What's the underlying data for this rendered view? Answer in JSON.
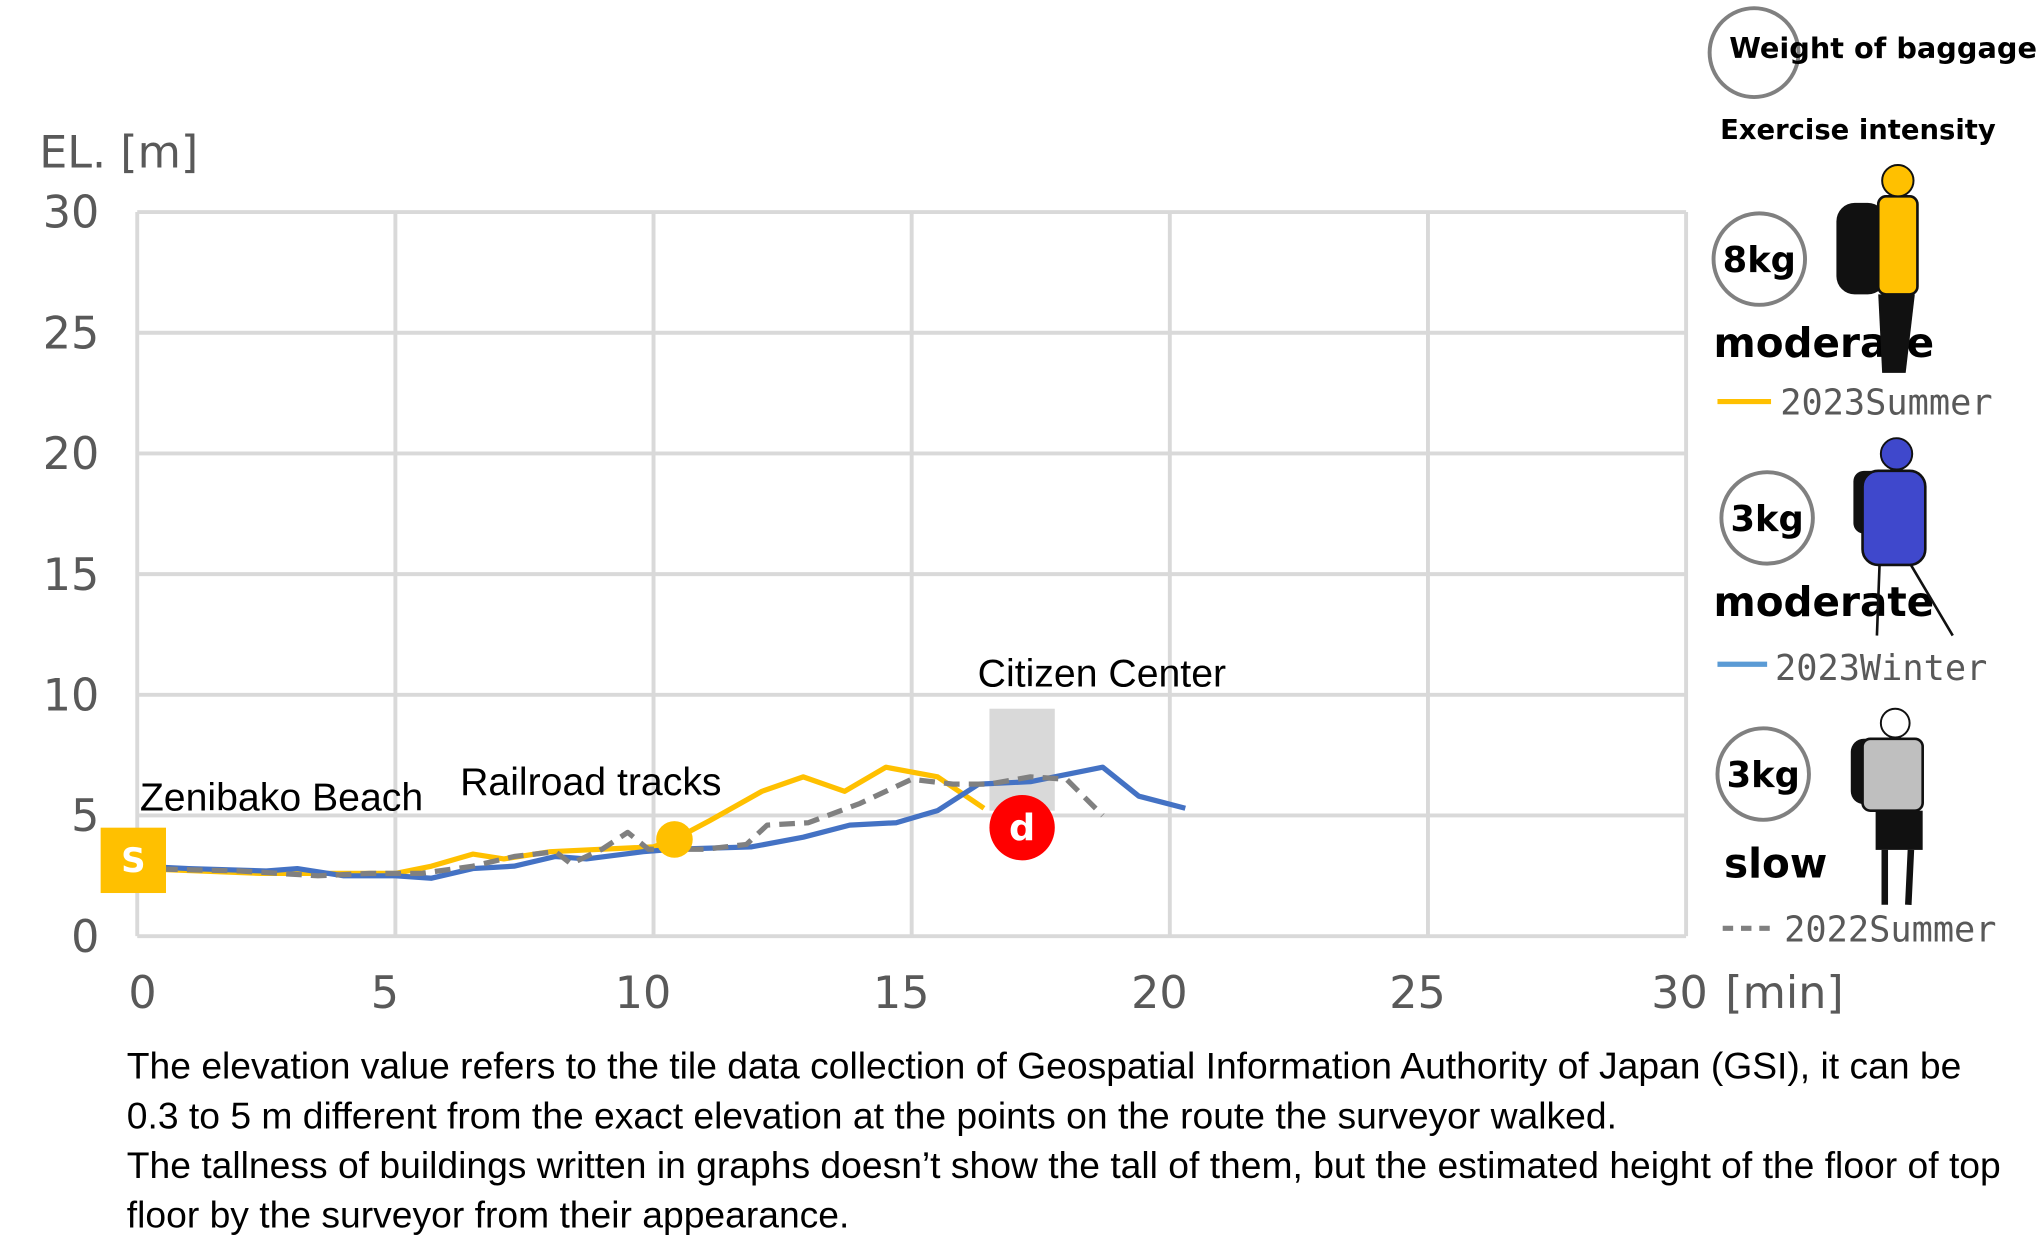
{
  "chart_data": {
    "type": "line",
    "ylabel": "EL. [m]",
    "xlabel": "[min]",
    "xlim": [
      0,
      30
    ],
    "ylim": [
      0,
      30
    ],
    "x_ticks": [
      "0",
      "5",
      "10",
      "15",
      "20",
      "25",
      "30"
    ],
    "y_ticks": [
      "0",
      "5",
      "10",
      "15",
      "20",
      "25",
      "30"
    ],
    "grid": true,
    "series": [
      {
        "name": "2023Summer",
        "color": "#FFC000",
        "dash": false,
        "points": [
          [
            0,
            2.8
          ],
          [
            2.4,
            2.6
          ],
          [
            5,
            2.6
          ],
          [
            5.7,
            2.9
          ],
          [
            6.5,
            3.4
          ],
          [
            7.1,
            3.2
          ],
          [
            8,
            3.5
          ],
          [
            10,
            3.7
          ],
          [
            10.4,
            4.0
          ],
          [
            11.1,
            4.8
          ],
          [
            12.1,
            6.0
          ],
          [
            12.9,
            6.6
          ],
          [
            13.7,
            6.0
          ],
          [
            14.5,
            7.0
          ],
          [
            15.5,
            6.6
          ],
          [
            16.4,
            5.3
          ]
        ]
      },
      {
        "name": "2023Winter",
        "color": "#4472C4",
        "dash": false,
        "points": [
          [
            0,
            2.9
          ],
          [
            1,
            2.8
          ],
          [
            2.5,
            2.7
          ],
          [
            3.1,
            2.8
          ],
          [
            4,
            2.5
          ],
          [
            5,
            2.5
          ],
          [
            5.7,
            2.4
          ],
          [
            6.5,
            2.8
          ],
          [
            7.3,
            2.9
          ],
          [
            8.1,
            3.3
          ],
          [
            8.7,
            3.2
          ],
          [
            9.8,
            3.5
          ],
          [
            10.4,
            3.6
          ],
          [
            11.9,
            3.7
          ],
          [
            12.9,
            4.1
          ],
          [
            13.8,
            4.6
          ],
          [
            14.7,
            4.7
          ],
          [
            15.5,
            5.2
          ],
          [
            16.3,
            6.3
          ],
          [
            17.3,
            6.4
          ],
          [
            18.7,
            7.0
          ],
          [
            19.4,
            5.8
          ],
          [
            20.3,
            5.3
          ]
        ]
      },
      {
        "name": "2022Summer",
        "color": "#808080",
        "dash": true,
        "points": [
          [
            0,
            2.8
          ],
          [
            2,
            2.7
          ],
          [
            3.5,
            2.5
          ],
          [
            4.5,
            2.6
          ],
          [
            5.5,
            2.6
          ],
          [
            6.5,
            2.9
          ],
          [
            7.3,
            3.3
          ],
          [
            8.1,
            3.5
          ],
          [
            8.4,
            3.0
          ],
          [
            9,
            3.6
          ],
          [
            9.5,
            4.3
          ],
          [
            9.9,
            3.6
          ],
          [
            11,
            3.6
          ],
          [
            11.8,
            3.8
          ],
          [
            12.2,
            4.6
          ],
          [
            13,
            4.7
          ],
          [
            14,
            5.5
          ],
          [
            15,
            6.5
          ],
          [
            15.8,
            6.3
          ],
          [
            16.5,
            6.3
          ],
          [
            17.3,
            6.6
          ],
          [
            18,
            6.5
          ],
          [
            18.7,
            5.0
          ]
        ]
      }
    ],
    "annotations": {
      "start_marker": "S",
      "start_label": "Zenibako Beach",
      "railroad_label": "Railroad tracks",
      "building_label": "Citizen Center",
      "building_marker": "d"
    }
  },
  "legend": {
    "weight_header": "Weight of baggage",
    "intensity_header": "Exercise intensity",
    "entries": [
      {
        "weight": "8kg",
        "intensity": "moderate",
        "series": "2023Summer"
      },
      {
        "weight": "3kg",
        "intensity": "moderate",
        "series": "2023Winter"
      },
      {
        "weight": "3kg",
        "intensity": "slow",
        "series": "2022Summer"
      }
    ]
  },
  "caption": [
    "The elevation value refers to the tile data collection of Geospatial Information Authority of Japan (GSI), it can be",
    "0.3 to 5 m different from the exact elevation at the points on the route the surveyor walked.",
    "The tallness of buildings written in graphs doesn’t show the tall of them, but the estimated height of the floor of top",
    "floor by the surveyor from their appearance."
  ],
  "colors": {
    "summer2023": "#FFC000",
    "winter2023": "#4472C4",
    "summer2022": "#808080",
    "marker_red": "#FF0000",
    "building": "#D9D9D9",
    "grid": "#D9D9D9"
  }
}
